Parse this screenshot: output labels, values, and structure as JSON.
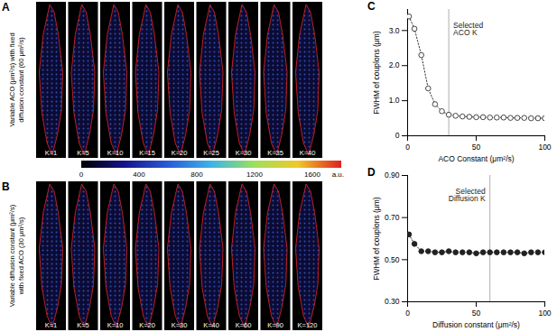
{
  "chart_data": [
    {
      "type": "line",
      "title": "C",
      "x_label": "ACO Constant (μm²/s)",
      "y_label": "FWHM of couplons (μm)",
      "x": [
        1,
        5,
        10,
        15,
        20,
        25,
        30,
        35,
        40,
        45,
        50,
        55,
        60,
        65,
        70,
        75,
        80,
        85,
        90,
        95,
        100
      ],
      "values": [
        3.4,
        3.05,
        2.3,
        1.35,
        0.9,
        0.7,
        0.6,
        0.57,
        0.55,
        0.54,
        0.53,
        0.53,
        0.52,
        0.52,
        0.52,
        0.51,
        0.51,
        0.51,
        0.5,
        0.5,
        0.5
      ],
      "xlim": [
        0,
        100
      ],
      "xticks": [
        0,
        50,
        100
      ],
      "ylim": [
        0,
        3.6
      ],
      "yticks": [
        0,
        {
          "value": 1,
          "label": "1.0"
        },
        {
          "value": 2,
          "label": "2.0"
        },
        {
          "value": 3,
          "label": "3.0"
        }
      ],
      "marker": "circle-open",
      "line_style": "dotted",
      "color": "#333333",
      "annotations": [
        {
          "x": 30,
          "text": "Selected ACO K"
        }
      ]
    },
    {
      "type": "line",
      "title": "D",
      "x_label": "Diffusion constant (μm²/s)",
      "y_label": "FWHM of couplons (μm)",
      "x": [
        1,
        5,
        10,
        15,
        20,
        25,
        30,
        35,
        40,
        45,
        50,
        55,
        60,
        65,
        70,
        75,
        80,
        85,
        90,
        95,
        100
      ],
      "values": [
        0.62,
        0.575,
        0.54,
        0.54,
        0.535,
        0.535,
        0.54,
        0.535,
        0.535,
        0.535,
        0.53,
        0.535,
        0.535,
        0.535,
        0.535,
        0.535,
        0.535,
        0.53,
        0.535,
        0.535,
        0.535
      ],
      "xlim": [
        0,
        100
      ],
      "xticks": [
        0,
        50,
        100
      ],
      "ylim": [
        0.3,
        0.9
      ],
      "yticks": [
        {
          "value": 0.3,
          "label": "0.30"
        },
        {
          "value": 0.5,
          "label": "0.50"
        },
        {
          "value": 0.7,
          "label": "0.70"
        },
        {
          "value": 0.9,
          "label": "0.90"
        }
      ],
      "marker": "circle-filled",
      "line_style": "dotted",
      "color": "#222222",
      "annotations": [
        {
          "x": 60,
          "text": "Selected Diffusion K"
        }
      ]
    }
  ],
  "image_panels": [
    {
      "label": "A",
      "y_label": [
        "Variable ACO (μm²/s) with fixed",
        "diffusion constant (60 μm²/s)"
      ],
      "k_labels": [
        "K=1",
        "K=5",
        "K=10",
        "K=15",
        "K=20",
        "K=25",
        "K=30",
        "K=35",
        "K=40"
      ]
    },
    {
      "label": "B",
      "y_label": [
        "Variable diffusion constant (μm²/s)",
        "with fixed ACO (30 μm²/s)"
      ],
      "k_labels": [
        "K=1",
        "K=5",
        "K=10",
        "K=20",
        "K=30",
        "K=40",
        "K=60",
        "K=90",
        "K=120"
      ]
    }
  ],
  "colorbar": {
    "range": [
      0,
      1800
    ],
    "ticks": [
      0,
      400,
      800,
      1200,
      1600
    ],
    "label": "a.u.",
    "colors": [
      "#000000",
      "#14148c",
      "#2a5ad8",
      "#3cb4e6",
      "#9ee05a",
      "#f0c828",
      "#e02020"
    ]
  }
}
